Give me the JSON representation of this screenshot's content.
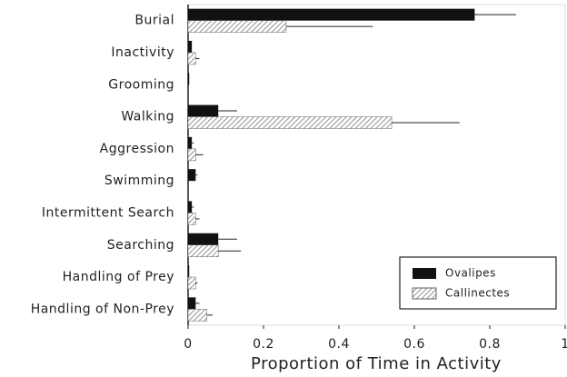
{
  "chart_data": {
    "type": "hbar",
    "xlabel": "Proportion of Time in Activity",
    "categories": [
      "Burial",
      "Inactivity",
      "Grooming",
      "Walking",
      "Aggression",
      "Swimming",
      "Intermittent Search",
      "Searching",
      "Handling of Prey",
      "Handling of Non-Prey"
    ],
    "series": [
      {
        "name": "Ovalipes",
        "color": "#111111",
        "hatch": false,
        "values": [
          0.76,
          0.01,
          0.003,
          0.08,
          0.01,
          0.02,
          0.01,
          0.08,
          0.003,
          0.02
        ],
        "errors": [
          0.11,
          0,
          0,
          0.05,
          0.005,
          0.005,
          0.005,
          0.05,
          0,
          0.01
        ]
      },
      {
        "name": "Callinectes",
        "color": "#9a9a9a",
        "hatch": true,
        "values": [
          0.26,
          0.02,
          0,
          0.54,
          0.02,
          0,
          0.02,
          0.08,
          0.02,
          0.05
        ],
        "errors": [
          0.23,
          0.01,
          0,
          0.18,
          0.02,
          0,
          0.01,
          0.06,
          0.005,
          0.015
        ]
      }
    ],
    "xlim": [
      0,
      1
    ],
    "xticks": [
      0,
      0.2,
      0.4,
      0.6,
      0.8,
      1
    ],
    "legend": "lower right"
  }
}
